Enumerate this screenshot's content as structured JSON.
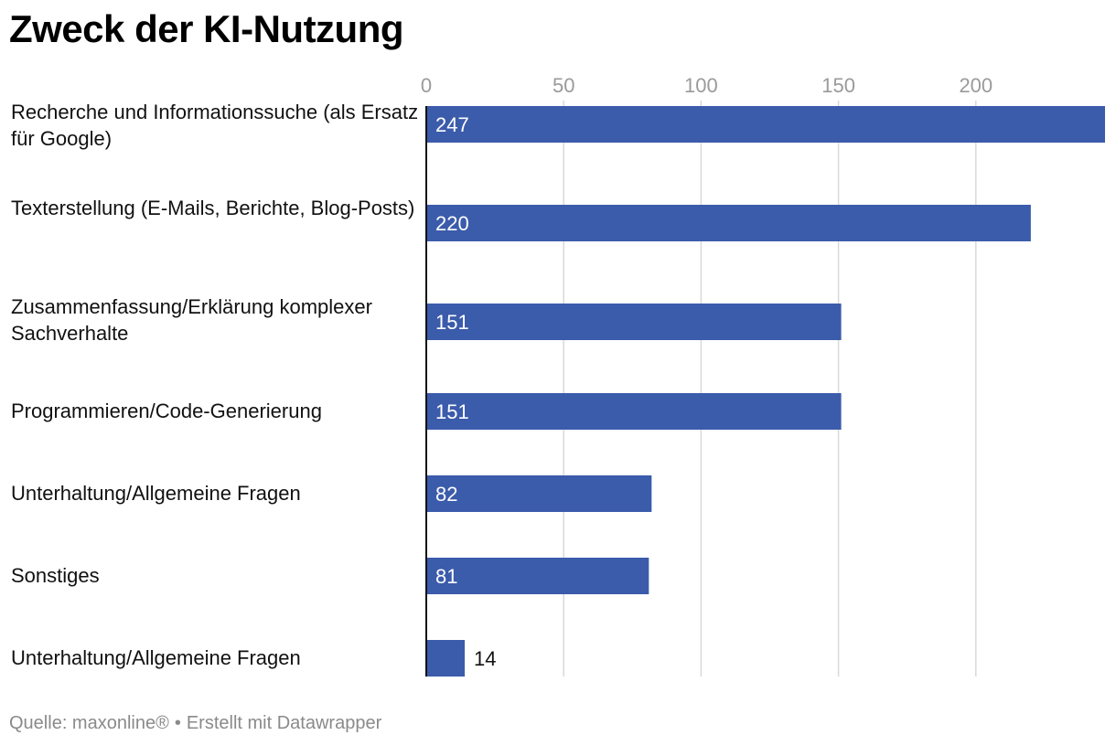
{
  "chart_data": {
    "type": "bar",
    "orientation": "horizontal",
    "title": "Zweck der KI-Nutzung",
    "categories": [
      "Recherche und Informationssuche (als Ersatz für Google)",
      "Texterstellung (E-Mails, Berichte, Blog-Posts)",
      "Zusammenfassung/Erklärung komplexer Sachverhalte",
      "Programmieren/Code-Generierung",
      "Unterhaltung/Allgemeine Fragen",
      "Sonstiges",
      "Unterhaltung/Allgemeine Fragen"
    ],
    "values": [
      247,
      220,
      151,
      151,
      82,
      81,
      14
    ],
    "xticks": [
      0,
      50,
      100,
      150,
      200
    ],
    "xlim": [
      0,
      247
    ],
    "grid": true,
    "axis_position": "top",
    "bar_color": "#3b5bab"
  },
  "footer": {
    "source": "Quelle: maxonline®",
    "separator": "•",
    "credit": "Erstellt mit Datawrapper"
  }
}
